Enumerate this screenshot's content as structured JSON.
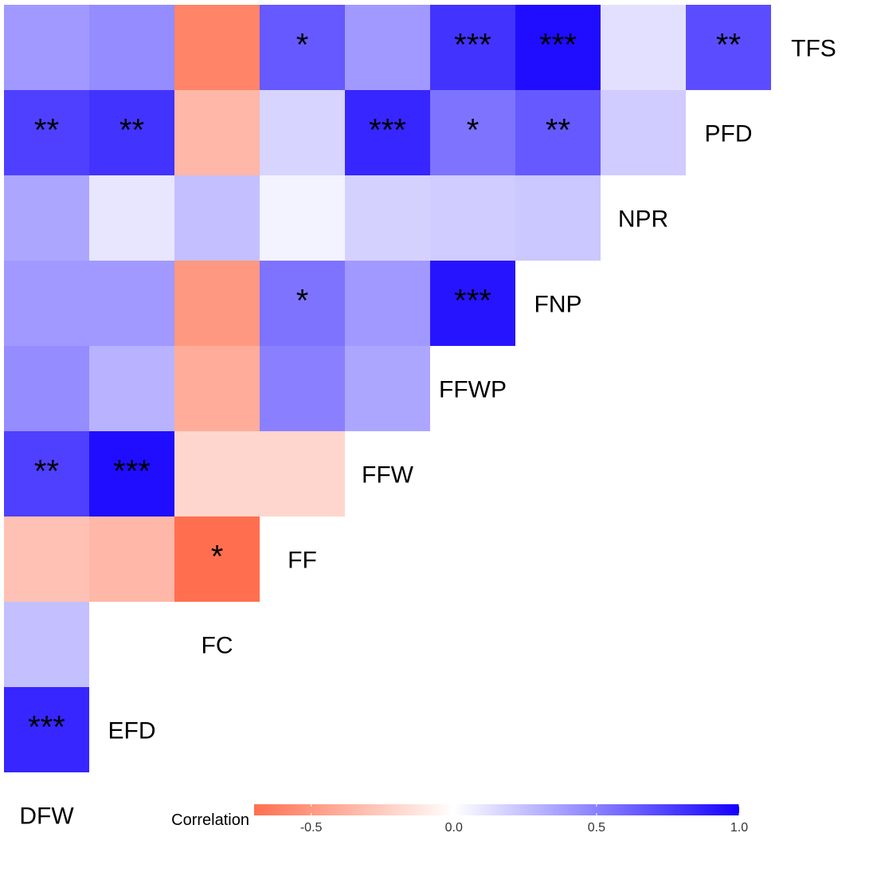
{
  "chart_data": {
    "type": "heatmap",
    "variables": [
      "DFW",
      "EFD",
      "FC",
      "FF",
      "FFW",
      "FFWP",
      "FNP",
      "NPR",
      "PFD",
      "TFS"
    ],
    "rows": [
      {
        "name": "TFS",
        "values": [
          0.4,
          0.45,
          -0.6,
          0.65,
          0.4,
          0.8,
          0.95,
          0.12,
          0.7
        ],
        "signif": [
          "",
          "",
          "",
          "*",
          "",
          "***",
          "***",
          "",
          "**"
        ]
      },
      {
        "name": "PFD",
        "values": [
          0.75,
          0.8,
          -0.35,
          0.17,
          0.85,
          0.55,
          0.65,
          0.2
        ],
        "signif": [
          "**",
          "**",
          "",
          "",
          "***",
          "*",
          "**",
          ""
        ]
      },
      {
        "name": "NPR",
        "values": [
          0.35,
          0.1,
          0.25,
          0.05,
          0.18,
          0.2,
          0.22
        ],
        "signif": [
          "",
          "",
          "",
          "",
          "",
          "",
          ""
        ]
      },
      {
        "name": "FNP",
        "values": [
          0.4,
          0.4,
          -0.5,
          0.55,
          0.4,
          0.92
        ],
        "signif": [
          "",
          "",
          "",
          "*",
          "",
          "***"
        ]
      },
      {
        "name": "FFWP",
        "values": [
          0.45,
          0.3,
          -0.4,
          0.5,
          0.35
        ],
        "signif": [
          "",
          "",
          "",
          "",
          ""
        ]
      },
      {
        "name": "FFW",
        "values": [
          0.75,
          0.95,
          -0.2,
          -0.2
        ],
        "signif": [
          "**",
          "***",
          "",
          ""
        ]
      },
      {
        "name": "FF",
        "values": [
          -0.3,
          -0.35,
          -0.7
        ],
        "signif": [
          "",
          "",
          "*"
        ]
      },
      {
        "name": "FC",
        "values": [
          0.25,
          0.0
        ],
        "signif": [
          "",
          ""
        ]
      },
      {
        "name": "EFD",
        "values": [
          0.85
        ],
        "signif": [
          "***"
        ]
      }
    ],
    "bottom_label": "DFW",
    "legend": {
      "title": "Correlation",
      "range": [
        -0.7,
        1.0
      ],
      "ticks": [
        -0.5,
        0.0,
        0.5,
        1.0
      ],
      "tick_labels": [
        "-0.5",
        "0.0",
        "0.5",
        "1.0"
      ],
      "colors": {
        "low": "#FF6F4F",
        "mid": "#FFFFFF",
        "high": "#1400FF"
      }
    }
  }
}
